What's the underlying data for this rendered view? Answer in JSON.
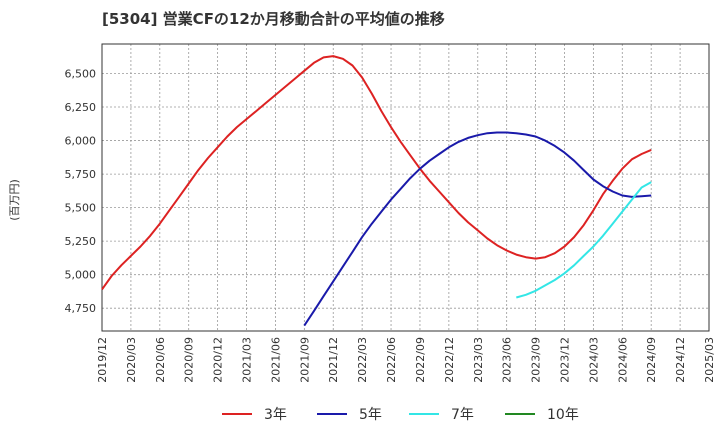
{
  "chart_data": {
    "type": "line",
    "title": "[5304]  営業CFの12か月移動合計の平均値の推移",
    "ylabel": "(百万円)",
    "xlabel": "",
    "ylim": [
      4580,
      6720
    ],
    "xlim": [
      "2019-12",
      "2025-03"
    ],
    "grid": true,
    "legend_position": "bottom",
    "y_ticks": [
      "4,750",
      "5,000",
      "5,250",
      "5,500",
      "5,750",
      "6,000",
      "6,250",
      "6,500"
    ],
    "y_tick_values": [
      4750,
      5000,
      5250,
      5500,
      5750,
      6000,
      6250,
      6500
    ],
    "x_ticks": [
      "2019/12",
      "2020/03",
      "2020/06",
      "2020/09",
      "2020/12",
      "2021/03",
      "2021/06",
      "2021/09",
      "2021/12",
      "2022/03",
      "2022/06",
      "2022/09",
      "2022/12",
      "2023/03",
      "2023/06",
      "2023/09",
      "2023/12",
      "2024/03",
      "2024/06",
      "2024/09",
      "2024/12",
      "2025/03"
    ],
    "series": [
      {
        "name": "3年",
        "color": "#dd2222",
        "points": [
          [
            "2019-12",
            4890
          ],
          [
            "2020-01",
            4990
          ],
          [
            "2020-02",
            5070
          ],
          [
            "2020-03",
            5140
          ],
          [
            "2020-04",
            5210
          ],
          [
            "2020-05",
            5290
          ],
          [
            "2020-06",
            5380
          ],
          [
            "2020-07",
            5480
          ],
          [
            "2020-08",
            5580
          ],
          [
            "2020-09",
            5680
          ],
          [
            "2020-10",
            5780
          ],
          [
            "2020-11",
            5870
          ],
          [
            "2020-12",
            5950
          ],
          [
            "2021-01",
            6030
          ],
          [
            "2021-02",
            6100
          ],
          [
            "2021-03",
            6160
          ],
          [
            "2021-04",
            6220
          ],
          [
            "2021-05",
            6280
          ],
          [
            "2021-06",
            6340
          ],
          [
            "2021-07",
            6400
          ],
          [
            "2021-08",
            6460
          ],
          [
            "2021-09",
            6520
          ],
          [
            "2021-10",
            6580
          ],
          [
            "2021-11",
            6620
          ],
          [
            "2021-12",
            6630
          ],
          [
            "2022-01",
            6610
          ],
          [
            "2022-02",
            6560
          ],
          [
            "2022-03",
            6470
          ],
          [
            "2022-04",
            6350
          ],
          [
            "2022-05",
            6220
          ],
          [
            "2022-06",
            6100
          ],
          [
            "2022-07",
            5990
          ],
          [
            "2022-08",
            5890
          ],
          [
            "2022-09",
            5790
          ],
          [
            "2022-10",
            5700
          ],
          [
            "2022-11",
            5620
          ],
          [
            "2022-12",
            5540
          ],
          [
            "2023-01",
            5460
          ],
          [
            "2023-02",
            5390
          ],
          [
            "2023-03",
            5330
          ],
          [
            "2023-04",
            5270
          ],
          [
            "2023-05",
            5220
          ],
          [
            "2023-06",
            5180
          ],
          [
            "2023-07",
            5150
          ],
          [
            "2023-08",
            5130
          ],
          [
            "2023-09",
            5120
          ],
          [
            "2023-10",
            5130
          ],
          [
            "2023-11",
            5160
          ],
          [
            "2023-12",
            5210
          ],
          [
            "2024-01",
            5280
          ],
          [
            "2024-02",
            5370
          ],
          [
            "2024-03",
            5480
          ],
          [
            "2024-04",
            5600
          ],
          [
            "2024-05",
            5700
          ],
          [
            "2024-06",
            5790
          ],
          [
            "2024-07",
            5860
          ],
          [
            "2024-08",
            5900
          ],
          [
            "2024-09",
            5930
          ]
        ]
      },
      {
        "name": "5年",
        "color": "#1a1aaa",
        "points": [
          [
            "2021-09",
            4620
          ],
          [
            "2021-10",
            4730
          ],
          [
            "2021-11",
            4840
          ],
          [
            "2021-12",
            4950
          ],
          [
            "2022-01",
            5060
          ],
          [
            "2022-02",
            5170
          ],
          [
            "2022-03",
            5280
          ],
          [
            "2022-04",
            5380
          ],
          [
            "2022-05",
            5470
          ],
          [
            "2022-06",
            5560
          ],
          [
            "2022-07",
            5640
          ],
          [
            "2022-08",
            5720
          ],
          [
            "2022-09",
            5790
          ],
          [
            "2022-10",
            5850
          ],
          [
            "2022-11",
            5900
          ],
          [
            "2022-12",
            5950
          ],
          [
            "2023-01",
            5990
          ],
          [
            "2023-02",
            6020
          ],
          [
            "2023-03",
            6040
          ],
          [
            "2023-04",
            6055
          ],
          [
            "2023-05",
            6060
          ],
          [
            "2023-06",
            6060
          ],
          [
            "2023-07",
            6055
          ],
          [
            "2023-08",
            6045
          ],
          [
            "2023-09",
            6030
          ],
          [
            "2023-10",
            6000
          ],
          [
            "2023-11",
            5960
          ],
          [
            "2023-12",
            5910
          ],
          [
            "2024-01",
            5850
          ],
          [
            "2024-02",
            5780
          ],
          [
            "2024-03",
            5710
          ],
          [
            "2024-04",
            5660
          ],
          [
            "2024-05",
            5620
          ],
          [
            "2024-06",
            5590
          ],
          [
            "2024-07",
            5580
          ],
          [
            "2024-08",
            5585
          ],
          [
            "2024-09",
            5590
          ]
        ]
      },
      {
        "name": "7年",
        "color": "#33e6e6",
        "points": [
          [
            "2023-07",
            4830
          ],
          [
            "2023-08",
            4850
          ],
          [
            "2023-09",
            4880
          ],
          [
            "2023-10",
            4920
          ],
          [
            "2023-11",
            4960
          ],
          [
            "2023-12",
            5010
          ],
          [
            "2024-01",
            5070
          ],
          [
            "2024-02",
            5140
          ],
          [
            "2024-03",
            5210
          ],
          [
            "2024-04",
            5290
          ],
          [
            "2024-05",
            5380
          ],
          [
            "2024-06",
            5470
          ],
          [
            "2024-07",
            5560
          ],
          [
            "2024-08",
            5650
          ],
          [
            "2024-09",
            5690
          ]
        ]
      },
      {
        "name": "10年",
        "color": "#228822",
        "points": []
      }
    ]
  }
}
